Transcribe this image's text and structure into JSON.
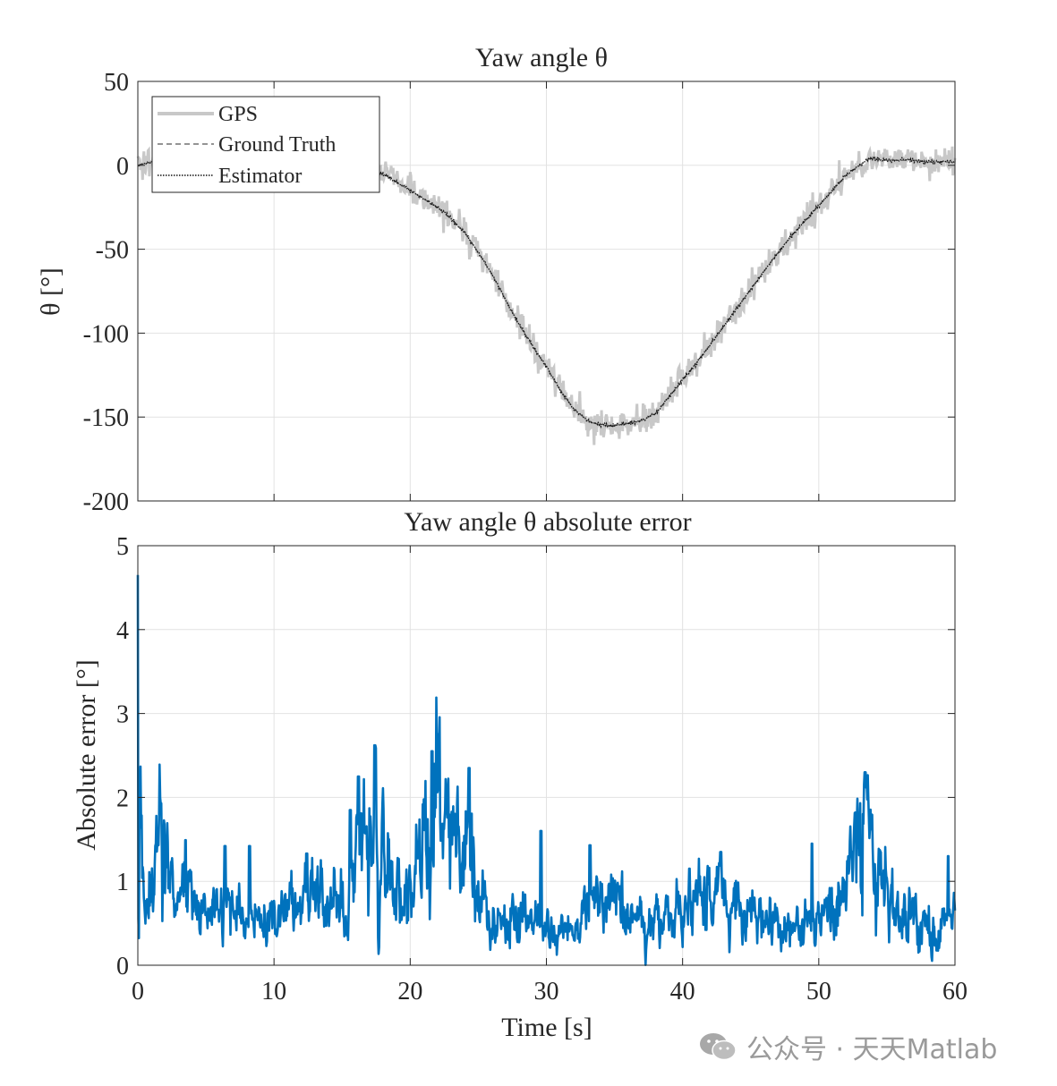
{
  "chart_data": [
    {
      "type": "line",
      "title": "Yaw angle θ",
      "xlabel": "",
      "ylabel": "θ [°]",
      "xlim": [
        0,
        60
      ],
      "ylim": [
        -200,
        50
      ],
      "xticks": [
        0,
        10,
        20,
        30,
        40,
        50,
        60
      ],
      "yticks": [
        50,
        0,
        -50,
        -100,
        -150,
        -200
      ],
      "ytick_labels": [
        "50",
        "0",
        "-50",
        "-100",
        "-150",
        "-200"
      ],
      "grid": true,
      "legend_position": "top-left",
      "series": [
        {
          "name": "GPS",
          "style": "solid-thick",
          "color": "#c8c8c8",
          "noise": 4.5
        },
        {
          "name": "Ground Truth",
          "style": "dashed",
          "color": "#707070"
        },
        {
          "name": "Estimator",
          "style": "dotted",
          "color": "#111111"
        }
      ],
      "truth_x": [
        0,
        1,
        2,
        4,
        6,
        8,
        10,
        12,
        14,
        16,
        17,
        18,
        19,
        20,
        21,
        22,
        23,
        24,
        25,
        26,
        27,
        28,
        29,
        30,
        31,
        32,
        33,
        34,
        35,
        36,
        37,
        38,
        39,
        40,
        41,
        42,
        43,
        44,
        45,
        46,
        47,
        48,
        49,
        50,
        51,
        52,
        53,
        53.7,
        55,
        57,
        58,
        60
      ],
      "truth_y": [
        0,
        2,
        1,
        0,
        -1,
        -2,
        -2,
        -2,
        -1,
        -1,
        -3,
        -5,
        -10,
        -15,
        -20,
        -25,
        -32,
        -40,
        -52,
        -65,
        -80,
        -95,
        -108,
        -120,
        -134,
        -145,
        -152,
        -155,
        -155,
        -154,
        -152,
        -148,
        -138,
        -128,
        -118,
        -107,
        -96,
        -85,
        -74,
        -63,
        -52,
        -42,
        -33,
        -24,
        -15,
        -6,
        0,
        4,
        3,
        3,
        2,
        2
      ]
    },
    {
      "type": "line",
      "title": "Yaw angle θ absolute error",
      "xlabel": "Time [s]",
      "ylabel": "Absolute error [°]",
      "xlim": [
        0,
        60
      ],
      "ylim": [
        0,
        5
      ],
      "xticks": [
        0,
        10,
        20,
        30,
        40,
        50,
        60
      ],
      "xtick_labels": [
        "0",
        "10",
        "20",
        "30",
        "40",
        "50",
        "60"
      ],
      "yticks": [
        0,
        1,
        2,
        3,
        4,
        5
      ],
      "ytick_labels": [
        "0",
        "1",
        "2",
        "3",
        "4",
        "5"
      ],
      "grid": true,
      "series": [
        {
          "name": "Absolute error",
          "color": "#0072BD"
        }
      ],
      "envelope_x": [
        0,
        0.05,
        0.4,
        1.0,
        1.7,
        2.5,
        3.5,
        5,
        6.5,
        8,
        10,
        12,
        13.5,
        15,
        16.5,
        17.4,
        18.5,
        20,
        21.5,
        22.5,
        23.5,
        24.5,
        25.5,
        27,
        28.5,
        30,
        32,
        33.5,
        35,
        36.5,
        38,
        40,
        42,
        44,
        46,
        48,
        50,
        52,
        53.4,
        54.5,
        56,
        58,
        60
      ],
      "envelope_y": [
        4.65,
        2.2,
        0.6,
        0.9,
        1.55,
        0.75,
        0.9,
        0.55,
        0.7,
        0.6,
        0.5,
        0.8,
        0.75,
        0.7,
        1.35,
        1.8,
        0.9,
        0.7,
        1.9,
        1.6,
        1.5,
        1.1,
        0.6,
        0.5,
        0.7,
        0.5,
        0.35,
        0.75,
        0.7,
        0.55,
        0.5,
        0.65,
        0.9,
        0.6,
        0.5,
        0.45,
        0.55,
        0.9,
        1.85,
        0.9,
        0.55,
        0.5,
        0.45
      ],
      "spikes": [
        [
          1.7,
          1.93
        ],
        [
          3.5,
          1.49
        ],
        [
          6.4,
          1.42
        ],
        [
          8.2,
          1.42
        ],
        [
          12.4,
          1.33
        ],
        [
          15.6,
          1.85
        ],
        [
          16.2,
          2.25
        ],
        [
          17.4,
          2.62
        ],
        [
          21.6,
          2.55
        ],
        [
          24.3,
          2.35
        ],
        [
          29.6,
          1.6
        ],
        [
          33.2,
          1.43
        ],
        [
          40.5,
          1.15
        ],
        [
          42.8,
          1.35
        ],
        [
          49.5,
          1.45
        ],
        [
          53.4,
          2.3
        ],
        [
          59.5,
          1.3
        ]
      ]
    }
  ],
  "legend": {
    "items": [
      "GPS",
      "Ground Truth",
      "Estimator"
    ]
  },
  "watermark": {
    "text": "公众号 · 天天Matlab"
  }
}
